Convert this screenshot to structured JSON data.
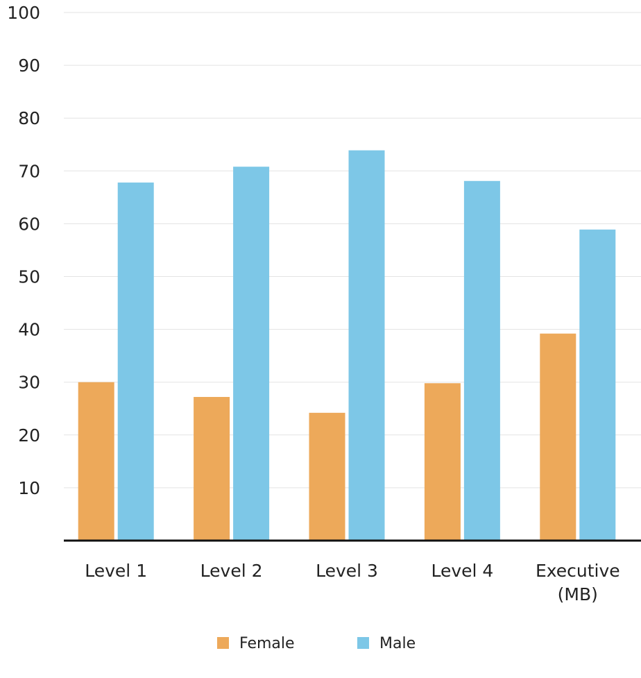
{
  "chart_data": {
    "type": "bar",
    "categories": [
      "Level 1",
      "Level 2",
      "Level 3",
      "Level 4",
      "Executive (MB)"
    ],
    "series": [
      {
        "name": "Female",
        "color": "#eda95a",
        "values": [
          30,
          27.2,
          24.2,
          29.8,
          39.2
        ]
      },
      {
        "name": "Male",
        "color": "#7dc7e7",
        "values": [
          67.8,
          70.8,
          73.9,
          68.1,
          58.9
        ]
      }
    ],
    "ylim": [
      0,
      100
    ],
    "yticks": [
      10,
      20,
      30,
      40,
      50,
      60,
      70,
      80,
      90,
      100
    ],
    "grid": true
  }
}
